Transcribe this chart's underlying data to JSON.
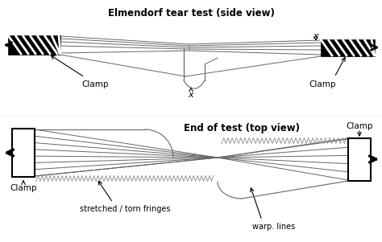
{
  "title_top": "Elmendorf tear test (side view)",
  "title_bottom": "End of test (top view)",
  "label_clamp": "Clamp",
  "label_x": "x",
  "label_stretched": "stretched / torn fringes",
  "label_warp": "warp. lines",
  "bg_color": "#ffffff",
  "line_color": "#666666",
  "dark_color": "#000000",
  "gray_color": "#999999",
  "title_fontsize": 8.5,
  "label_fontsize": 7.5
}
